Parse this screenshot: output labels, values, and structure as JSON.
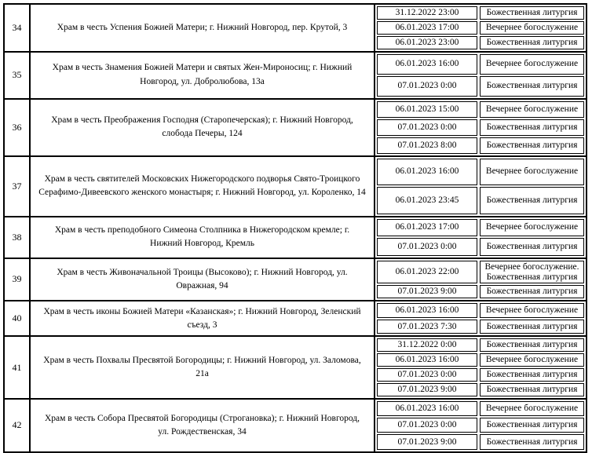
{
  "style": {
    "border_color": "#000000",
    "background_color": "#ffffff",
    "text_color": "#000000"
  },
  "table": {
    "description": "Schedule of church services, rows 34-42",
    "rows": [
      {
        "num": "34",
        "name": "Храм в честь Успения Божией Матери; г. Нижний Новгород, пер. Крутой, 3",
        "entries": [
          {
            "datetime": "31.12.2022 23:00",
            "service": "Божественная литургия"
          },
          {
            "datetime": "06.01.2023 17:00",
            "service": "Вечернее богослужение"
          },
          {
            "datetime": "06.01.2023 23:00",
            "service": "Божественная литургия"
          }
        ]
      },
      {
        "num": "35",
        "name": "Храм в честь Знамения Божией Матери и святых Жен-Мироносиц; г. Нижний Новгород, ул. Добролюбова, 13а",
        "entries": [
          {
            "datetime": "06.01.2023 16:00",
            "service": "Вечернее богослужение"
          },
          {
            "datetime": "07.01.2023 0:00",
            "service": "Божественная литургия"
          }
        ]
      },
      {
        "num": "36",
        "name": "Храм в честь Преображения Господня (Старопечерская); г. Нижний Новгород, слобода Печеры, 124",
        "entries": [
          {
            "datetime": "06.01.2023 15:00",
            "service": "Вечернее богослужение"
          },
          {
            "datetime": "07.01.2023 0:00",
            "service": "Божественная литургия"
          },
          {
            "datetime": "07.01.2023 8:00",
            "service": "Божественная литургия"
          }
        ]
      },
      {
        "num": "37",
        "name": "Храм в честь святителей Московских Нижегородского подворья Свято-Троицкого Серафимо-Дивеевского женского монастыря; г. Нижний Новгород, ул. Короленко, 14",
        "entries": [
          {
            "datetime": "06.01.2023 16:00",
            "service": "Вечернее богослужение"
          },
          {
            "datetime": "06.01.2023 23:45",
            "service": "Божественная литургия"
          }
        ]
      },
      {
        "num": "38",
        "name": "Храм в честь преподобного Симеона Столпника в Нижегородском кремле; г. Нижний Новгород, Кремль",
        "entries": [
          {
            "datetime": "06.01.2023 17:00",
            "service": "Вечернее богослужение"
          },
          {
            "datetime": "07.01.2023 0:00",
            "service": "Божественная литургия"
          }
        ]
      },
      {
        "num": "39",
        "name": "Храм в честь Живоначальной Троицы (Высоково); г. Нижний Новгород, ул. Овражная, 94",
        "entries": [
          {
            "datetime": "06.01.2023 22:00",
            "service": "Вечернее богослужение.\nБожественная литургия"
          },
          {
            "datetime": "07.01.2023 9:00",
            "service": "Божественная литургия"
          }
        ]
      },
      {
        "num": "40",
        "name": "Храм в честь иконы Божией Матери «Казанская»; г. Нижний Новгород, Зеленский съезд, 3",
        "entries": [
          {
            "datetime": "06.01.2023 16:00",
            "service": "Вечернее богослужение"
          },
          {
            "datetime": "07.01.2023 7:30",
            "service": "Божественная литургия"
          }
        ]
      },
      {
        "num": "41",
        "name": "Храм в честь Похвалы Пресвятой Богородицы; г. Нижний Новгород, ул. Заломова, 21а",
        "entries": [
          {
            "datetime": "31.12.2022 0:00",
            "service": "Божественная литургия"
          },
          {
            "datetime": "06.01.2023 16:00",
            "service": "Вечернее богослужение"
          },
          {
            "datetime": "07.01.2023 0:00",
            "service": "Божественная литургия"
          },
          {
            "datetime": "07.01.2023 9:00",
            "service": "Божественная литургия"
          }
        ]
      },
      {
        "num": "42",
        "name": "Храм в честь Собора Пресвятой Богородицы (Строгановка); г. Нижний Новгород, ул. Рождественская, 34",
        "entries": [
          {
            "datetime": "06.01.2023 16:00",
            "service": "Вечернее богослужение"
          },
          {
            "datetime": "07.01.2023 0:00",
            "service": "Божественная литургия"
          },
          {
            "datetime": "07.01.2023 9:00",
            "service": "Божественная литургия"
          }
        ]
      }
    ]
  }
}
